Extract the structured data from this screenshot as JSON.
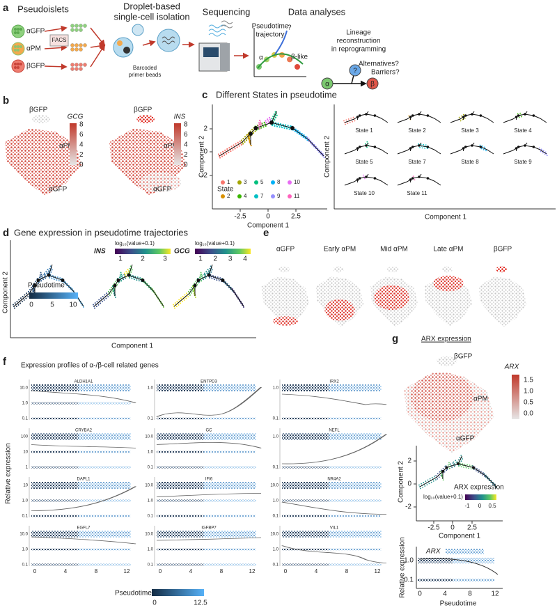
{
  "panel_a": {
    "letter": "a",
    "headings": {
      "pseudoislets": "Pseudoislets",
      "isolation": [
        "Droplet-based",
        "single-cell isolation"
      ],
      "sequencing": "Sequencing",
      "analyses": "Data analyses"
    },
    "samples": [
      "αGFP",
      "αPM",
      "βGFP"
    ],
    "facs": "FACS",
    "beads": [
      "Barcoded",
      "primer beads"
    ],
    "trajectory_title": [
      "Pseudotime",
      "trajectory"
    ],
    "trajectory_labels": {
      "alpha": "α",
      "beta": "β-like",
      "unknown": "?"
    },
    "lineage_title": [
      "Lineage",
      "reconstruction",
      "in reprogramming"
    ],
    "questions": [
      "Alternatives?",
      "Barriers?"
    ],
    "lineage_nodes": [
      "α",
      "?",
      "β"
    ]
  },
  "panel_b": {
    "letter": "b",
    "genes": [
      "GCG",
      "INS"
    ],
    "labels": [
      "βGFP",
      "αPM",
      "αGFP"
    ],
    "scale_ticks": [
      "8",
      "6",
      "4",
      "2",
      "0"
    ]
  },
  "panel_c": {
    "letter": "c",
    "title": "Different States in pseudotime",
    "x_label": "Component 1",
    "y_label": "Component 2",
    "x_ticks": [
      "-2.5",
      "0",
      "2.5"
    ],
    "y_ticks": [
      "2",
      "0",
      "-2"
    ],
    "legend_title": "State",
    "states": [
      {
        "name": "1",
        "color": "#f8766d"
      },
      {
        "name": "3",
        "color": "#a3a500"
      },
      {
        "name": "5",
        "color": "#00bf7d"
      },
      {
        "name": "8",
        "color": "#00b0f6"
      },
      {
        "name": "10",
        "color": "#e76bf3"
      },
      {
        "name": "2",
        "color": "#d89000"
      },
      {
        "name": "4",
        "color": "#39b600"
      },
      {
        "name": "7",
        "color": "#00bfc4"
      },
      {
        "name": "9",
        "color": "#9590ff"
      },
      {
        "name": "11",
        "color": "#ff62bc"
      }
    ],
    "small_multiples": [
      {
        "label": "State 1",
        "color": "#f8766d"
      },
      {
        "label": "State 2",
        "color": "#d89000"
      },
      {
        "label": "State 3",
        "color": "#a3a500"
      },
      {
        "label": "State 4",
        "color": "#39b600"
      },
      {
        "label": "State 5",
        "color": "#00bf7d"
      },
      {
        "label": "State 7",
        "color": "#00bfc4"
      },
      {
        "label": "State 8",
        "color": "#00b0f6"
      },
      {
        "label": "State 9",
        "color": "#9590ff"
      },
      {
        "label": "State 10",
        "color": "#e76bf3"
      },
      {
        "label": "State 11",
        "color": "#ff62bc"
      }
    ]
  },
  "panel_d": {
    "letter": "d",
    "title": "Gene expression in pseudotime trajectories",
    "x_label": "Component 1",
    "y_label": "Component 2",
    "pseudotime": {
      "label": "Pseudotime",
      "ticks": [
        "0",
        "5",
        "10"
      ]
    },
    "ins": {
      "gene": "INS",
      "scale": "log₁₀(value+0.1)",
      "ticks": [
        "1",
        "2",
        "3"
      ]
    },
    "gcg": {
      "gene": "GCG",
      "scale": "log₁₀(value+0.1)",
      "ticks": [
        "1",
        "2",
        "3",
        "4"
      ]
    }
  },
  "panel_e": {
    "letter": "e",
    "titles": [
      "αGFP",
      "Early αPM",
      "Mid αPM",
      "Late αPM",
      "βGFP"
    ]
  },
  "panel_f": {
    "letter": "f",
    "title": "Expression profiles of α-/β-cell related genes",
    "y_label": "Relative expression",
    "x_ticks": [
      "0",
      "4",
      "8",
      "12"
    ],
    "plots": [
      {
        "gene": "ALDH1A1",
        "y_ticks": [
          "10.0",
          "1.0",
          "0.1"
        ]
      },
      {
        "gene": "ENTPD3",
        "y_ticks": [
          "1.0",
          "0.1"
        ]
      },
      {
        "gene": "IRX2",
        "y_ticks": [
          "1.0",
          "0.1"
        ]
      },
      {
        "gene": "CRYBA2",
        "y_ticks": [
          "100",
          "10",
          "1"
        ]
      },
      {
        "gene": "GC",
        "y_ticks": [
          "10.0",
          "1.0",
          "0.1"
        ]
      },
      {
        "gene": "NEFL",
        "y_ticks": [
          "1.0",
          "0.1"
        ]
      },
      {
        "gene": "DAPL1",
        "y_ticks": [
          "10",
          "1.0",
          "0.1"
        ]
      },
      {
        "gene": "IFI6",
        "y_ticks": [
          "10.0",
          "1.0",
          "0.1"
        ]
      },
      {
        "gene": "NR4A2",
        "y_ticks": [
          "10.0",
          "1.0",
          "0.1"
        ]
      },
      {
        "gene": "EGFL7",
        "y_ticks": [
          "10.0",
          "1.0",
          "0.1"
        ]
      },
      {
        "gene": "IGFBP7",
        "y_ticks": [
          "10.0",
          "1.0",
          "0.1"
        ]
      },
      {
        "gene": "VIL1",
        "y_ticks": [
          "10.0",
          "1.0",
          "0.1"
        ]
      }
    ],
    "legend": {
      "label": "Pseudotime",
      "ticks": [
        "0",
        "12.5"
      ]
    }
  },
  "panel_g": {
    "letter": "g",
    "title": "ARX expression",
    "labels": [
      "βGFP",
      "αPM",
      "αGFP"
    ],
    "gene": "ARX",
    "scale_ticks": [
      "1.5",
      "1.0",
      "0.5",
      "0.0"
    ],
    "trajectory": {
      "x_label": "Component 1",
      "y_label": "Component 2",
      "x_ticks": [
        "-2.5",
        "0",
        "2.5"
      ],
      "y_ticks": [
        "2",
        "0",
        "-2"
      ],
      "legend": "ARX expression",
      "scale": "log₁₀(value+0.1)",
      "scale_ticks": [
        "-1",
        "0",
        "0.5"
      ]
    },
    "profile": {
      "gene": "ARX",
      "y_label": "Relative expression",
      "y_ticks": [
        "1.0",
        "0.1"
      ],
      "x_ticks": [
        "0",
        "4",
        "8",
        "12"
      ],
      "x_label": "Pseudotime"
    }
  }
}
